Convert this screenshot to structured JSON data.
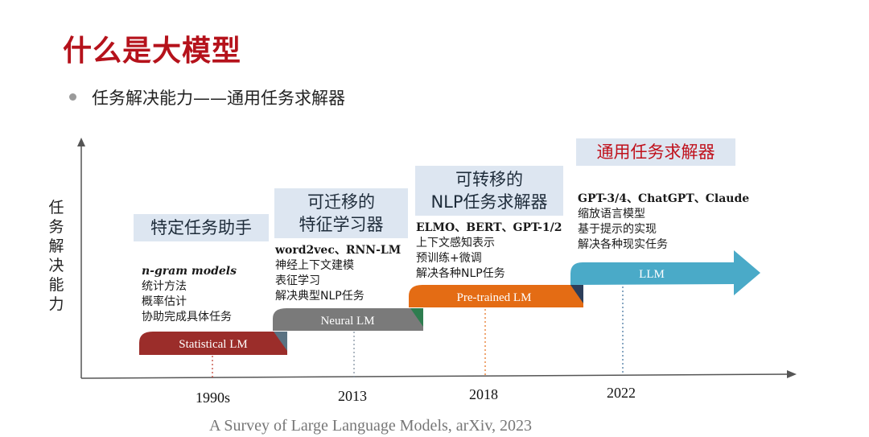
{
  "title": "什么是大模型",
  "bullet": "任务解决能力——通用任务求解器",
  "y_axis_label": [
    "任",
    "务",
    "解",
    "决",
    "能",
    "力"
  ],
  "stages": [
    {
      "label_lines": [
        "特定任务助手"
      ],
      "desc_head": "n-gram models",
      "desc_lines": [
        "统计方法",
        "概率估计",
        "协助完成具体任务"
      ],
      "bar_label": "Statistical LM",
      "bar_color": "#9b2d2a",
      "year": "1990s"
    },
    {
      "label_lines": [
        "可迁移的",
        "特征学习器"
      ],
      "desc_head": "word2vec、RNN-LM",
      "desc_lines": [
        "神经上下文建模",
        "表征学习",
        "解决典型NLP任务"
      ],
      "bar_label": "Neural LM",
      "bar_color": "#7a7a7a",
      "year": "2013"
    },
    {
      "label_lines": [
        "可转移的",
        "NLP任务求解器"
      ],
      "desc_head": "ELMO、BERT、GPT-1/2",
      "desc_lines": [
        "上下文感知表示",
        "预训练+微调",
        "解决各种NLP任务"
      ],
      "bar_label": "Pre-trained LM",
      "bar_color": "#e46c14",
      "year": "2018"
    },
    {
      "label_lines": [
        "通用任务求解器"
      ],
      "desc_head": "GPT-3/4、ChatGPT、Claude",
      "desc_lines": [
        "缩放语言模型",
        "基于提示的实现",
        "解决各种现实任务"
      ],
      "bar_label": "LLM",
      "bar_color": "#4aaac8",
      "year": "2022"
    }
  ],
  "citation": "A Survey of Large Language Models, arXiv, 2023",
  "colors": {
    "title": "#b5121b",
    "label_bg": "#dde6f1",
    "axis": "#555555"
  }
}
